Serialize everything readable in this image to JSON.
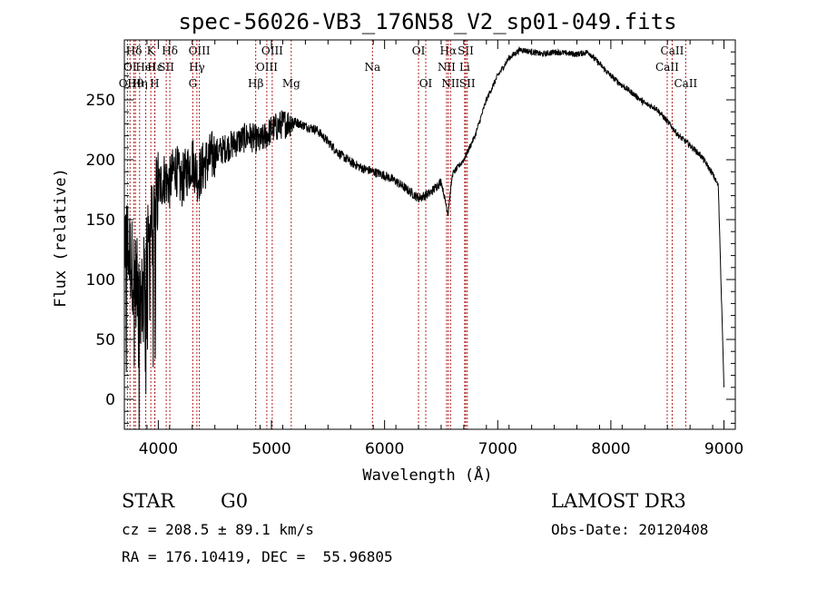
{
  "chart_data": {
    "type": "line",
    "title": "spec-56026-VB3_176N58_V2_sp01-049.fits",
    "xlabel": "Wavelength (Å)",
    "ylabel": "Flux (relative)",
    "xlim": [
      3700,
      9100
    ],
    "ylim": [
      -25,
      300
    ],
    "xticks": [
      4000,
      5000,
      6000,
      7000,
      8000,
      9000
    ],
    "yticks": [
      0,
      50,
      100,
      150,
      200,
      250
    ],
    "line_color": "#000000",
    "marker_color": "#b22222",
    "series": [
      {
        "name": "spectrum",
        "x": [
          3700,
          3750,
          3800,
          3850,
          3900,
          3950,
          4000,
          4050,
          4100,
          4150,
          4200,
          4250,
          4300,
          4350,
          4400,
          4450,
          4500,
          4600,
          4700,
          4800,
          4900,
          5000,
          5100,
          5200,
          5300,
          5400,
          5500,
          5600,
          5700,
          5800,
          5900,
          6000,
          6100,
          6200,
          6300,
          6400,
          6500,
          6560,
          6600,
          6700,
          6800,
          6900,
          7000,
          7100,
          7200,
          7300,
          7400,
          7500,
          7600,
          7700,
          7800,
          7900,
          8000,
          8100,
          8200,
          8300,
          8400,
          8500,
          8600,
          8700,
          8800,
          8900,
          8950,
          9000
        ],
        "y": [
          140,
          120,
          100,
          80,
          120,
          150,
          175,
          185,
          180,
          195,
          180,
          190,
          200,
          185,
          195,
          200,
          205,
          210,
          215,
          220,
          215,
          225,
          230,
          232,
          228,
          225,
          215,
          205,
          198,
          193,
          190,
          187,
          182,
          175,
          168,
          172,
          182,
          155,
          188,
          200,
          220,
          250,
          270,
          285,
          292,
          290,
          288,
          290,
          289,
          288,
          290,
          280,
          270,
          262,
          255,
          247,
          243,
          232,
          220,
          212,
          203,
          188,
          178,
          10
        ]
      }
    ],
    "line_markers": [
      {
        "name": "OII",
        "x": 3727,
        "label_row": 2
      },
      {
        "name": "Hθ",
        "x": 3798,
        "label_row": 2
      },
      {
        "name": "Hη",
        "x": 3835,
        "label_row": 2
      },
      {
        "name": "OI",
        "x": 3750,
        "label_row": 1
      },
      {
        "name": "HeI",
        "x": 3889,
        "label_row": 1
      },
      {
        "name": "Hε",
        "x": 3970,
        "label_row": 1
      },
      {
        "name": "SII",
        "x": 4070,
        "label_row": 1
      },
      {
        "name": "Hδ",
        "x": 3785,
        "label_row": 0
      },
      {
        "name": "K",
        "x": 3934,
        "label_row": 0
      },
      {
        "name": "H",
        "x": 3968,
        "label_row": 2
      },
      {
        "name": "Hδ",
        "x": 4102,
        "label_row": 0
      },
      {
        "name": "OIII",
        "x": 4363,
        "label_row": 0
      },
      {
        "name": "Hγ",
        "x": 4341,
        "label_row": 1
      },
      {
        "name": "G",
        "x": 4305,
        "label_row": 2
      },
      {
        "name": "Hβ",
        "x": 4861,
        "label_row": 2
      },
      {
        "name": "OIII",
        "x": 5007,
        "label_row": 0
      },
      {
        "name": "OIII",
        "x": 4959,
        "label_row": 1
      },
      {
        "name": "Mg",
        "x": 5175,
        "label_row": 2
      },
      {
        "name": "Na",
        "x": 5893,
        "label_row": 1
      },
      {
        "name": "OI",
        "x": 6300,
        "label_row": 0
      },
      {
        "name": "OI",
        "x": 6364,
        "label_row": 2
      },
      {
        "name": "Hα",
        "x": 6563,
        "label_row": 0
      },
      {
        "name": "NII",
        "x": 6548,
        "label_row": 1
      },
      {
        "name": "NII",
        "x": 6583,
        "label_row": 2
      },
      {
        "name": "SII",
        "x": 6717,
        "label_row": 0
      },
      {
        "name": "Li",
        "x": 6708,
        "label_row": 1
      },
      {
        "name": "SII",
        "x": 6731,
        "label_row": 2
      },
      {
        "name": "CaII",
        "x": 8542,
        "label_row": 0
      },
      {
        "name": "CaII",
        "x": 8498,
        "label_row": 1
      },
      {
        "name": "CaII",
        "x": 8662,
        "label_row": 2
      }
    ]
  },
  "info": {
    "class_label": "STAR",
    "subclass": "G0",
    "survey": "LAMOST DR3",
    "cz": "cz = 208.5 ± 89.1 km/s",
    "obs_date": "Obs-Date: 20120408",
    "coords": "RA = 176.10419, DEC =  55.96805"
  }
}
